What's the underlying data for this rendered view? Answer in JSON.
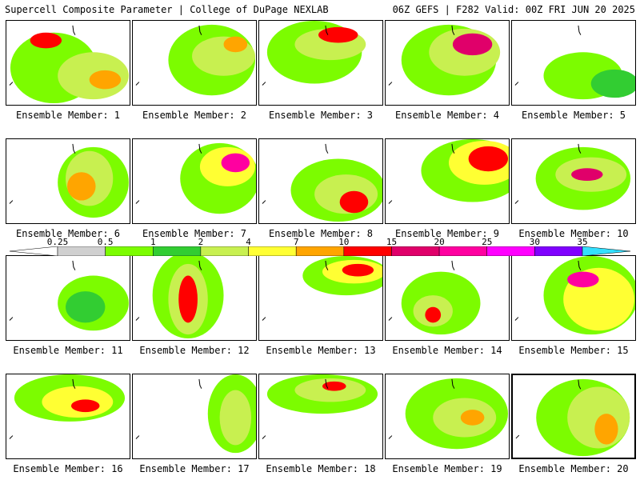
{
  "header": {
    "left": "Supercell Composite Parameter | College of DuPage NEXLAB",
    "right": "06Z GEFS | F282 Valid: 00Z FRI JUN 20 2025"
  },
  "scale": {
    "labels": [
      "0.25",
      "0.5",
      "1",
      "2",
      "4",
      "7",
      "10",
      "15",
      "20",
      "25",
      "30",
      "35"
    ],
    "colors": [
      "#d0d0d0",
      "#7cfc00",
      "#32cd32",
      "#c8f050",
      "#ffff33",
      "#ffa500",
      "#ff0000",
      "#e0006a",
      "#ff00a0",
      "#ff00ff",
      "#8000ff",
      "#9966cc",
      "#33e0ff"
    ]
  },
  "panels": [
    {
      "label": "Ensemble Member: 1",
      "selected": false
    },
    {
      "label": "Ensemble Member: 2",
      "selected": false
    },
    {
      "label": "Ensemble Member: 3",
      "selected": false
    },
    {
      "label": "Ensemble Member: 4",
      "selected": false
    },
    {
      "label": "Ensemble Member: 5",
      "selected": false
    },
    {
      "label": "Ensemble Member: 6",
      "selected": false
    },
    {
      "label": "Ensemble Member: 7",
      "selected": false
    },
    {
      "label": "Ensemble Member: 8",
      "selected": false
    },
    {
      "label": "Ensemble Member: 9",
      "selected": false
    },
    {
      "label": "Ensemble Member: 10",
      "selected": false
    },
    {
      "label": "Ensemble Member: 11",
      "selected": false
    },
    {
      "label": "Ensemble Member: 12",
      "selected": false
    },
    {
      "label": "Ensemble Member: 13",
      "selected": false
    },
    {
      "label": "Ensemble Member: 14",
      "selected": false
    },
    {
      "label": "Ensemble Member: 15",
      "selected": false
    },
    {
      "label": "Ensemble Member: 16",
      "selected": false
    },
    {
      "label": "Ensemble Member: 17",
      "selected": false
    },
    {
      "label": "Ensemble Member: 18",
      "selected": false
    },
    {
      "label": "Ensemble Member: 19",
      "selected": false
    },
    {
      "label": "Ensemble Member: 20",
      "selected": true
    }
  ]
}
